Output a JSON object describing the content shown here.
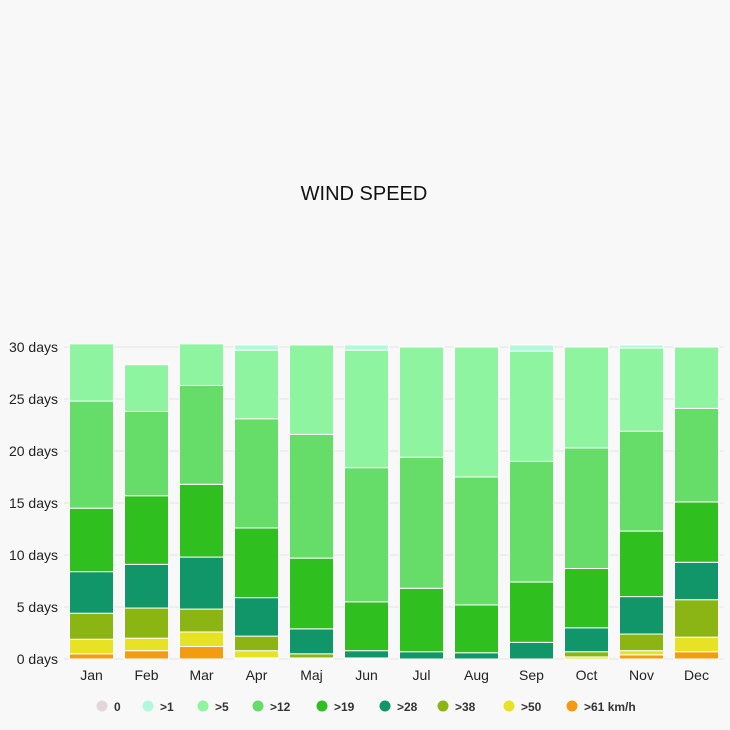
{
  "chart_data": {
    "type": "bar",
    "stacked": true,
    "title": "WIND SPEED",
    "xlabel": "",
    "ylabel": "",
    "ylim": [
      0,
      30
    ],
    "y_ticks": [
      0,
      5,
      10,
      15,
      20,
      25,
      30
    ],
    "y_tick_suffix": " days",
    "grid": true,
    "legend_position": "bottom",
    "categories": [
      "Jan",
      "Feb",
      "Mar",
      "Apr",
      "Maj",
      "Jun",
      "Jul",
      "Aug",
      "Sep",
      "Oct",
      "Nov",
      "Dec"
    ],
    "series": [
      {
        "name": "0",
        "color": "#e2d6dc",
        "values": [
          0,
          0,
          0,
          0,
          0,
          0,
          0,
          0,
          0,
          0,
          0,
          0
        ]
      },
      {
        "name": ">61 km/h",
        "color": "#f39c12",
        "values": [
          0.5,
          0.8,
          1.2,
          0.1,
          0,
          0,
          0,
          0,
          0,
          0,
          0.4,
          0.7
        ]
      },
      {
        "name": ">50",
        "color": "#e8e226",
        "values": [
          1.4,
          1.2,
          1.4,
          0.7,
          0.1,
          0,
          0,
          0,
          0,
          0.2,
          0.4,
          1.4
        ]
      },
      {
        "name": ">38",
        "color": "#8ab512",
        "values": [
          2.5,
          2.9,
          2.2,
          1.4,
          0.4,
          0.1,
          0,
          0,
          0,
          0.5,
          1.6,
          3.6
        ]
      },
      {
        "name": ">28",
        "color": "#11966a",
        "values": [
          4.0,
          4.2,
          5.0,
          3.7,
          2.4,
          0.7,
          0.7,
          0.6,
          1.6,
          2.3,
          3.6,
          3.6
        ]
      },
      {
        "name": ">19",
        "color": "#2fbf1f",
        "values": [
          6.1,
          6.6,
          7.0,
          6.7,
          6.8,
          4.7,
          6.1,
          4.6,
          5.8,
          5.7,
          6.3,
          5.8
        ]
      },
      {
        "name": ">12",
        "color": "#66dc69",
        "values": [
          10.3,
          8.1,
          9.5,
          10.5,
          11.9,
          12.9,
          12.6,
          12.3,
          11.6,
          11.6,
          9.6,
          9.0
        ]
      },
      {
        "name": ">5",
        "color": "#8ef4a0",
        "values": [
          5.5,
          4.5,
          4.0,
          6.6,
          8.6,
          11.3,
          10.6,
          12.5,
          10.6,
          9.7,
          8.0,
          5.9
        ]
      },
      {
        "name": ">1",
        "color": "#b1f8dc",
        "values": [
          0,
          0,
          0,
          0.5,
          0,
          0.5,
          0,
          0,
          0.6,
          0,
          0.3,
          0
        ]
      }
    ],
    "legend": [
      {
        "label": "0",
        "color": "#e2d6dc"
      },
      {
        "label": ">1",
        "color": "#b1f8dc"
      },
      {
        "label": ">5",
        "color": "#8ef4a0"
      },
      {
        "label": ">12",
        "color": "#66dc69"
      },
      {
        "label": ">19",
        "color": "#2fbf1f"
      },
      {
        "label": ">28",
        "color": "#11966a"
      },
      {
        "label": ">38",
        "color": "#8ab512"
      },
      {
        "label": ">50",
        "color": "#e8e226"
      },
      {
        "label": ">61 km/h",
        "color": "#f39c12"
      }
    ]
  }
}
